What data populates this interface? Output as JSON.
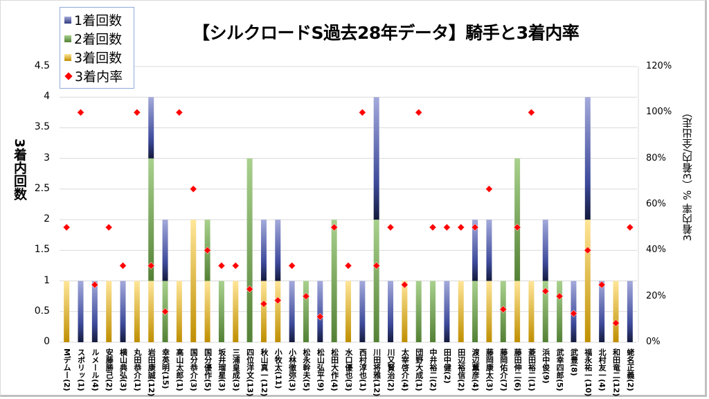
{
  "chart_data": {
    "type": "bar",
    "stacked": true,
    "title": "【シルクロードS過去28年データ】騎手と3着内率",
    "ylabel": "3着内回数",
    "y2label": "3着内率 %（3着内/全出走）",
    "ylim": [
      0,
      4.5
    ],
    "y2lim": [
      0,
      1.2
    ],
    "yticks": [
      "0",
      "0.5",
      "1",
      "1.5",
      "2",
      "2.5",
      "3",
      "3.5",
      "4",
      "4.5"
    ],
    "y2ticks": [
      "0%",
      "20%",
      "40%",
      "60%",
      "80%",
      "100%",
      "120%"
    ],
    "grid": true,
    "legend_position": "top-left",
    "legend": [
      "1着回数",
      "2着回数",
      "3着回数",
      "3着内率"
    ],
    "categories": [
      "Mデムー(2)",
      "スボリッ(1)",
      "ルメール(4)",
      "安藤勝己(2)",
      "横山典弘(3)",
      "丸田恭介(1)",
      "岩田康誠(12)",
      "幸英明(15)",
      "高山太郎(1)",
      "国分恭介(3)",
      "国分優作(5)",
      "坂井瑠星(3)",
      "三浦皇成(3)",
      "四位洋文(13)",
      "秋山真一(12)",
      "小牧太(11)",
      "小林徹弥(3)",
      "松永幹夫(5)",
      "松山弘平(9)",
      "松田大作(4)",
      "水口優也(3)",
      "西村淳也(1)",
      "川田将雅(12)",
      "川又賢治(2)",
      "太宰啓介(4)",
      "団野大成(1)",
      "中井裕二(2)",
      "田中健(2)",
      "田辺裕信(2)",
      "渡辺薫彦(4)",
      "藤岡康太(3)",
      "藤岡佑介(7)",
      "藤田伸二(6)",
      "菱田裕二(1)",
      "浜中俊(9)",
      "武幸四郎(5)",
      "武豊(8)",
      "福永祐一(10)",
      "北村友一(4)",
      "和田竜二(12)",
      "蛯名正義(2)"
    ],
    "series": [
      {
        "name": "3着回数",
        "type": "bar",
        "color": "#c9961a",
        "values": [
          1,
          0,
          0,
          1,
          0,
          1,
          1,
          0,
          1,
          2,
          1,
          0,
          1,
          0,
          1,
          1,
          0,
          0,
          0,
          0,
          1,
          0,
          0,
          0,
          1,
          0,
          0,
          0,
          1,
          0,
          1,
          0,
          1,
          1,
          0,
          0,
          0,
          2,
          0,
          1,
          0
        ]
      },
      {
        "name": "2着回数",
        "type": "bar",
        "color": "#5a8a3c",
        "values": [
          0,
          0,
          0,
          0,
          0,
          0,
          2,
          1,
          0,
          0,
          1,
          1,
          0,
          3,
          0,
          0,
          0,
          1,
          0,
          2,
          0,
          0,
          2,
          0,
          0,
          1,
          1,
          0,
          0,
          1,
          0,
          1,
          2,
          0,
          1,
          1,
          0,
          0,
          0,
          0,
          0
        ]
      },
      {
        "name": "1着回数",
        "type": "bar",
        "color": "#2e3a80",
        "values": [
          0,
          1,
          1,
          0,
          1,
          0,
          1,
          1,
          0,
          0,
          0,
          0,
          0,
          0,
          1,
          1,
          1,
          0,
          1,
          0,
          0,
          1,
          2,
          1,
          0,
          0,
          0,
          1,
          0,
          1,
          1,
          0,
          0,
          0,
          1,
          0,
          1,
          2,
          1,
          0,
          1
        ]
      },
      {
        "name": "3着内率",
        "type": "scatter",
        "axis": "right",
        "color": "#ff0000",
        "values": [
          0.5,
          1.0,
          0.25,
          0.5,
          0.333,
          1.0,
          0.333,
          0.133,
          1.0,
          0.667,
          0.4,
          0.333,
          0.333,
          0.231,
          0.167,
          0.182,
          0.333,
          0.2,
          0.111,
          0.5,
          0.333,
          1.0,
          0.333,
          0.5,
          0.25,
          1.0,
          0.5,
          0.5,
          0.5,
          0.5,
          0.667,
          0.143,
          0.5,
          1.0,
          0.222,
          0.2,
          0.125,
          0.4,
          0.25,
          0.083,
          0.5
        ]
      }
    ]
  }
}
